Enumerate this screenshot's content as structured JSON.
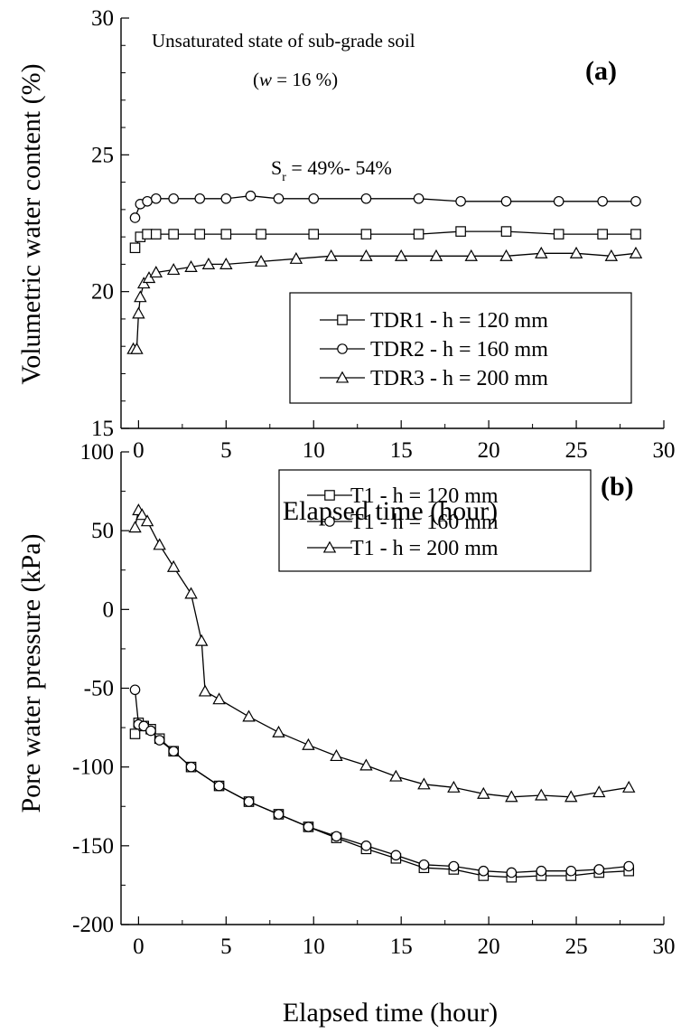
{
  "chart_data": [
    {
      "type": "line",
      "panel_label": "(a)",
      "xlabel": "Elapsed time (hour)",
      "ylabel": "Volumetric water content (%)",
      "xlim": [
        -1,
        30
      ],
      "ylim": [
        15,
        30
      ],
      "xticks": [
        "0",
        "5",
        "10",
        "15",
        "20",
        "25",
        "30"
      ],
      "yticks": [
        "15",
        "20",
        "25",
        "30"
      ],
      "annotations": {
        "line1": "Unsaturated state of sub-grade soil",
        "line2_prefix": "(",
        "line2_var": "w",
        "line2_suffix": " = 16 %)",
        "sr_main": "S",
        "sr_sub": "r",
        "sr_rest": " = 49%- 54%"
      },
      "legend": {
        "position": "lower-right"
      },
      "grid": false,
      "series": [
        {
          "name": "TDR1 - h = 120 mm",
          "marker": "square",
          "x": [
            -0.2,
            0.1,
            0.5,
            1.0,
            2.0,
            3.5,
            5.0,
            7.0,
            10.0,
            13.0,
            16.0,
            18.4,
            21.0,
            24.0,
            26.5,
            28.4
          ],
          "y": [
            21.6,
            22.0,
            22.1,
            22.1,
            22.1,
            22.1,
            22.1,
            22.1,
            22.1,
            22.1,
            22.1,
            22.2,
            22.2,
            22.1,
            22.1,
            22.1
          ]
        },
        {
          "name": "TDR2 - h = 160 mm",
          "marker": "circle",
          "x": [
            -0.2,
            0.1,
            0.5,
            1.0,
            2.0,
            3.5,
            5.0,
            6.4,
            8.0,
            10.0,
            13.0,
            16.0,
            18.4,
            21.0,
            24.0,
            26.5,
            28.4
          ],
          "y": [
            22.7,
            23.2,
            23.3,
            23.4,
            23.4,
            23.4,
            23.4,
            23.5,
            23.4,
            23.4,
            23.4,
            23.4,
            23.3,
            23.3,
            23.3,
            23.3,
            23.3
          ]
        },
        {
          "name": "TDR3 - h = 200 mm",
          "marker": "triangle",
          "x": [
            -0.3,
            -0.1,
            0.0,
            0.1,
            0.3,
            0.6,
            1.0,
            2.0,
            3.0,
            4.0,
            5.0,
            7.0,
            9.0,
            11.0,
            13.0,
            15.0,
            17.0,
            19.0,
            21.0,
            23.0,
            25.0,
            27.0,
            28.4
          ],
          "y": [
            17.9,
            17.9,
            19.2,
            19.8,
            20.3,
            20.5,
            20.7,
            20.8,
            20.9,
            21.0,
            21.0,
            21.1,
            21.2,
            21.3,
            21.3,
            21.3,
            21.3,
            21.3,
            21.3,
            21.4,
            21.4,
            21.3,
            21.4
          ]
        }
      ]
    },
    {
      "type": "line",
      "panel_label": "(b)",
      "xlabel": "Elapsed time (hour)",
      "ylabel": "Pore water pressure (kPa)",
      "xlim": [
        -1,
        30
      ],
      "ylim": [
        -200,
        100
      ],
      "xticks": [
        "0",
        "5",
        "10",
        "15",
        "20",
        "25",
        "30"
      ],
      "yticks": [
        "-200",
        "-150",
        "-100",
        "-50",
        "0",
        "50",
        "100"
      ],
      "legend": {
        "position": "upper-right"
      },
      "grid": false,
      "series": [
        {
          "name": "T1 - h = 120 mm",
          "marker": "square",
          "x": [
            -0.2,
            0.0,
            0.3,
            0.7,
            1.2,
            2.0,
            3.0,
            4.6,
            6.3,
            8.0,
            9.7,
            11.3,
            13.0,
            14.7,
            16.3,
            18.0,
            19.7,
            21.3,
            23.0,
            24.7,
            26.3,
            28.0
          ],
          "y": [
            -79,
            -72,
            -74,
            -76,
            -82,
            -90,
            -100,
            -112,
            -122,
            -130,
            -138,
            -145,
            -152,
            -158,
            -164,
            -165,
            -169,
            -170,
            -169,
            -169,
            -167,
            -166
          ]
        },
        {
          "name": "T1 - h = 160 mm",
          "marker": "circle",
          "x": [
            -0.2,
            0.0,
            0.3,
            0.7,
            1.2,
            2.0,
            3.0,
            4.6,
            6.3,
            8.0,
            9.7,
            11.3,
            13.0,
            14.7,
            16.3,
            18.0,
            19.7,
            21.3,
            23.0,
            24.7,
            26.3,
            28.0
          ],
          "y": [
            -51,
            -73,
            -74,
            -77,
            -83,
            -90,
            -100,
            -112,
            -122,
            -130,
            -138,
            -144,
            -150,
            -156,
            -162,
            -163,
            -166,
            -167,
            -166,
            -166,
            -165,
            -163
          ]
        },
        {
          "name": "T1 - h = 200 mm",
          "marker": "triangle",
          "x": [
            -0.2,
            0.0,
            0.2,
            0.5,
            1.2,
            2.0,
            3.0,
            3.6,
            3.8,
            4.6,
            6.3,
            8.0,
            9.7,
            11.3,
            13.0,
            14.7,
            16.3,
            18.0,
            19.7,
            21.3,
            23.0,
            24.7,
            26.3,
            28.0
          ],
          "y": [
            52,
            63,
            60,
            56,
            41,
            27,
            10,
            -20,
            -52,
            -57,
            -68,
            -78,
            -86,
            -93,
            -99,
            -106,
            -111,
            -113,
            -117,
            -119,
            -118,
            -119,
            -116,
            -113
          ]
        }
      ]
    }
  ]
}
